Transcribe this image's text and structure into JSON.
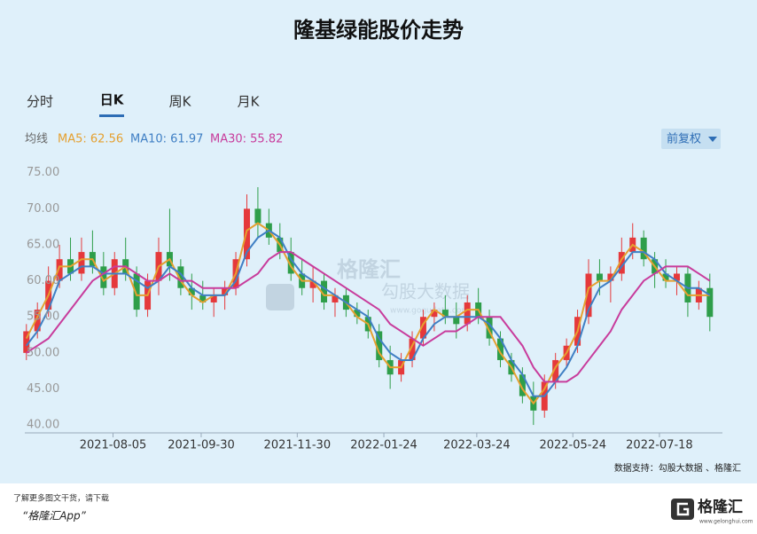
{
  "header": {
    "title": "隆基绿能股价走势",
    "tabs": [
      "分时",
      "日K",
      "周K",
      "月K"
    ],
    "ma_label": "均线",
    "adjust_button": "前复权"
  },
  "watermark": {
    "brand": "格隆汇",
    "source": "勾股大数据",
    "site": "www.gogudata.com"
  },
  "footer": {
    "credit": "数据支持：勾股大数据 、格隆汇",
    "promo": "了解更多图文干货，请下载",
    "app": "“格隆汇App”",
    "logo": "格隆汇",
    "logo_site": "www.gelonghui.com"
  },
  "chart_data": {
    "type": "candlestick",
    "x": [
      "2021-06-11",
      "2021-06-18",
      "2021-06-25",
      "2021-07-02",
      "2021-07-09",
      "2021-07-16",
      "2021-07-23",
      "2021-07-30",
      "2021-08-06",
      "2021-08-13",
      "2021-08-20",
      "2021-08-27",
      "2021-09-03",
      "2021-09-10",
      "2021-09-17",
      "2021-09-24",
      "2021-10-01",
      "2021-10-08",
      "2021-10-15",
      "2021-10-22",
      "2021-10-29",
      "2021-11-05",
      "2021-11-12",
      "2021-11-19",
      "2021-11-26",
      "2021-12-03",
      "2021-12-10",
      "2021-12-17",
      "2021-12-24",
      "2021-12-31",
      "2022-01-07",
      "2022-01-14",
      "2022-01-21",
      "2022-01-28",
      "2022-02-04",
      "2022-02-11",
      "2022-02-18",
      "2022-02-25",
      "2022-03-04",
      "2022-03-11",
      "2022-03-18",
      "2022-03-25",
      "2022-04-01",
      "2022-04-08",
      "2022-04-15",
      "2022-04-22",
      "2022-04-29",
      "2022-05-06",
      "2022-05-13",
      "2022-05-20",
      "2022-05-27",
      "2022-06-03",
      "2022-06-10",
      "2022-06-17",
      "2022-06-24",
      "2022-07-01",
      "2022-07-08",
      "2022-07-15",
      "2022-07-22",
      "2022-07-29",
      "2022-08-05",
      "2022-08-12",
      "2022-08-19"
    ],
    "open": [
      50,
      53,
      56,
      60,
      63,
      61,
      64,
      62,
      59,
      63,
      61,
      56,
      60,
      64,
      62,
      59,
      58,
      57,
      58,
      59,
      63,
      70,
      68,
      66,
      64,
      61,
      59,
      60,
      57,
      58,
      56,
      55,
      53,
      49,
      47,
      49,
      52,
      55,
      56,
      55,
      54,
      57,
      55,
      52,
      49,
      47,
      44,
      42,
      46,
      49,
      51,
      55,
      61,
      60,
      61,
      64,
      66,
      63,
      61,
      60,
      61,
      57,
      59
    ],
    "high": [
      54,
      57,
      62,
      65,
      66,
      66,
      67,
      64,
      64,
      66,
      62,
      61,
      66,
      70,
      63,
      61,
      60,
      59,
      60,
      64,
      72,
      73,
      70,
      68,
      66,
      63,
      62,
      61,
      59,
      59,
      57,
      56,
      54,
      51,
      50,
      53,
      56,
      57,
      58,
      57,
      58,
      59,
      56,
      53,
      50,
      48,
      46,
      47,
      50,
      52,
      56,
      63,
      63,
      62,
      66,
      68,
      67,
      64,
      63,
      62,
      62,
      60,
      61
    ],
    "low": [
      49,
      52,
      55,
      59,
      60,
      60,
      61,
      58,
      58,
      60,
      55,
      55,
      58,
      60,
      58,
      56,
      56,
      55,
      56,
      58,
      62,
      66,
      65,
      63,
      60,
      58,
      57,
      56,
      55,
      55,
      54,
      52,
      48,
      45,
      46,
      48,
      51,
      53,
      54,
      52,
      53,
      54,
      51,
      48,
      46,
      43,
      40,
      41,
      45,
      48,
      50,
      54,
      58,
      57,
      60,
      63,
      62,
      59,
      59,
      58,
      55,
      56,
      53
    ],
    "close": [
      53,
      56,
      60,
      63,
      61,
      64,
      62,
      59,
      63,
      61,
      56,
      60,
      64,
      62,
      59,
      58,
      57,
      58,
      59,
      63,
      70,
      68,
      66,
      64,
      61,
      59,
      60,
      57,
      58,
      56,
      55,
      53,
      49,
      47,
      49,
      52,
      55,
      56,
      55,
      54,
      57,
      55,
      52,
      49,
      47,
      44,
      42,
      46,
      49,
      51,
      55,
      61,
      60,
      61,
      64,
      66,
      63,
      61,
      60,
      61,
      57,
      59,
      55
    ],
    "up_color": "#e5393b",
    "down_color": "#2e9e4a",
    "series": [
      {
        "name": "MA5: 62.56",
        "color": "#e5a030",
        "values": [
          52,
          55,
          58,
          62,
          62,
          63,
          63,
          60,
          61,
          62,
          58,
          58,
          62,
          63,
          60,
          58,
          57,
          58,
          58,
          61,
          67,
          68,
          67,
          65,
          62,
          60,
          60,
          58,
          58,
          57,
          55,
          54,
          50,
          48,
          48,
          51,
          54,
          56,
          55,
          55,
          56,
          56,
          53,
          50,
          48,
          45,
          43,
          45,
          48,
          50,
          53,
          59,
          60,
          60,
          63,
          65,
          64,
          62,
          60,
          60,
          58,
          58,
          58
        ]
      },
      {
        "name": "MA10: 61.97",
        "color": "#3f7fc4",
        "values": [
          51,
          53,
          56,
          60,
          61,
          62,
          62,
          61,
          61,
          61,
          60,
          59,
          60,
          62,
          61,
          59,
          58,
          58,
          58,
          60,
          64,
          66,
          67,
          66,
          63,
          61,
          60,
          59,
          58,
          57,
          56,
          55,
          52,
          50,
          49,
          49,
          52,
          54,
          55,
          55,
          55,
          55,
          54,
          52,
          49,
          47,
          44,
          44,
          46,
          48,
          51,
          56,
          59,
          60,
          62,
          64,
          64,
          63,
          61,
          60,
          59,
          59,
          58
        ]
      },
      {
        "name": "MA30: 55.82",
        "color": "#c83c9c",
        "values": [
          50,
          51,
          52,
          54,
          56,
          58,
          60,
          61,
          62,
          62,
          61,
          60,
          60,
          61,
          60,
          60,
          59,
          59,
          59,
          59,
          60,
          61,
          63,
          64,
          64,
          63,
          62,
          61,
          60,
          59,
          58,
          57,
          56,
          54,
          53,
          52,
          51,
          52,
          53,
          53,
          54,
          55,
          55,
          55,
          53,
          51,
          48,
          46,
          46,
          46,
          47,
          49,
          51,
          53,
          56,
          58,
          60,
          61,
          62,
          62,
          62,
          61,
          60
        ]
      }
    ],
    "xlim": [
      "2021-06-10",
      "2022-08-27"
    ],
    "xticks": [
      "2021-08-05",
      "2021-09-30",
      "2021-11-30",
      "2022-01-24",
      "2022-03-24",
      "2022-05-24",
      "2022-07-18"
    ],
    "ylim": [
      38.9,
      76.2
    ],
    "yticks": [
      {
        "value": 40,
        "label": "40.00"
      },
      {
        "value": 45,
        "label": "45.00"
      },
      {
        "value": 50,
        "label": "50.00"
      },
      {
        "value": 55,
        "label": "55.00"
      },
      {
        "value": 60,
        "label": "60.00"
      },
      {
        "value": 65,
        "label": "65.00"
      },
      {
        "value": 70,
        "label": "70.00"
      },
      {
        "value": 75,
        "label": "75.00"
      }
    ]
  }
}
